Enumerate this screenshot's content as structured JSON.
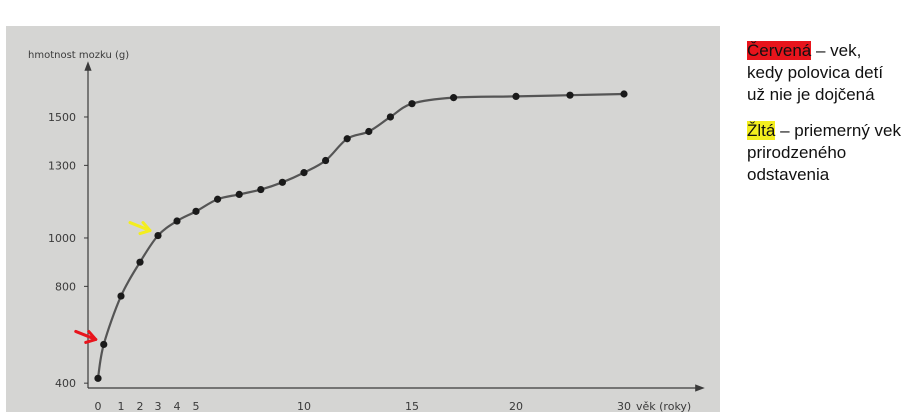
{
  "chart_data": {
    "type": "line",
    "title": "",
    "ylabel": "hmotnost mozku (g)",
    "xlabel": "věk (roky)",
    "ylim": [
      380,
      1690
    ],
    "yticks": [
      400,
      800,
      1000,
      1300,
      1500
    ],
    "yticklabels": [
      "400",
      "800",
      "1000",
      "1300",
      "1500"
    ],
    "xticklabels": [
      "0",
      "1",
      "2",
      "3",
      "4",
      "5",
      "10",
      "15",
      "20",
      "30"
    ],
    "x_axis_note": "non-linear age axis",
    "x": [
      0,
      0.25,
      1,
      2,
      3,
      4,
      5,
      6,
      7,
      8,
      9,
      10,
      11,
      12,
      13,
      14,
      15,
      17,
      20,
      25,
      30
    ],
    "values": [
      420,
      560,
      760,
      900,
      1010,
      1070,
      1110,
      1160,
      1180,
      1200,
      1230,
      1270,
      1320,
      1410,
      1440,
      1500,
      1555,
      1580,
      1585,
      1590,
      1595
    ],
    "series": [
      {
        "name": "",
        "x": [
          0,
          0.25,
          1,
          2,
          3,
          4,
          5,
          6,
          7,
          8,
          9,
          10,
          11,
          12,
          13,
          14,
          15,
          17,
          20,
          25,
          30
        ],
        "values": [
          420,
          560,
          760,
          900,
          1010,
          1070,
          1110,
          1160,
          1180,
          1200,
          1230,
          1270,
          1320,
          1410,
          1440,
          1500,
          1555,
          1580,
          1585,
          1590,
          1595
        ],
        "color": "#555555"
      }
    ],
    "annotations": [
      {
        "marker": "red-arrow",
        "color": "#e8141c",
        "points_to_x": 0.25
      },
      {
        "marker": "yellow-arrow",
        "color": "#f3ee1e",
        "points_to_x": 3
      }
    ],
    "grid": false,
    "legend": "right"
  },
  "legend": {
    "red_label": "Červená",
    "red_text": " – vek, kedy polovica detí už nie je dojčená",
    "yellow_label": "Žltá",
    "yellow_text": " – priemerný vek prirodzeného odstavenia"
  },
  "colors": {
    "panel_bg": "#d5d5d3",
    "axis": "#3a3a3a",
    "red": "#e8141c",
    "yellow": "#f3ee1e"
  }
}
